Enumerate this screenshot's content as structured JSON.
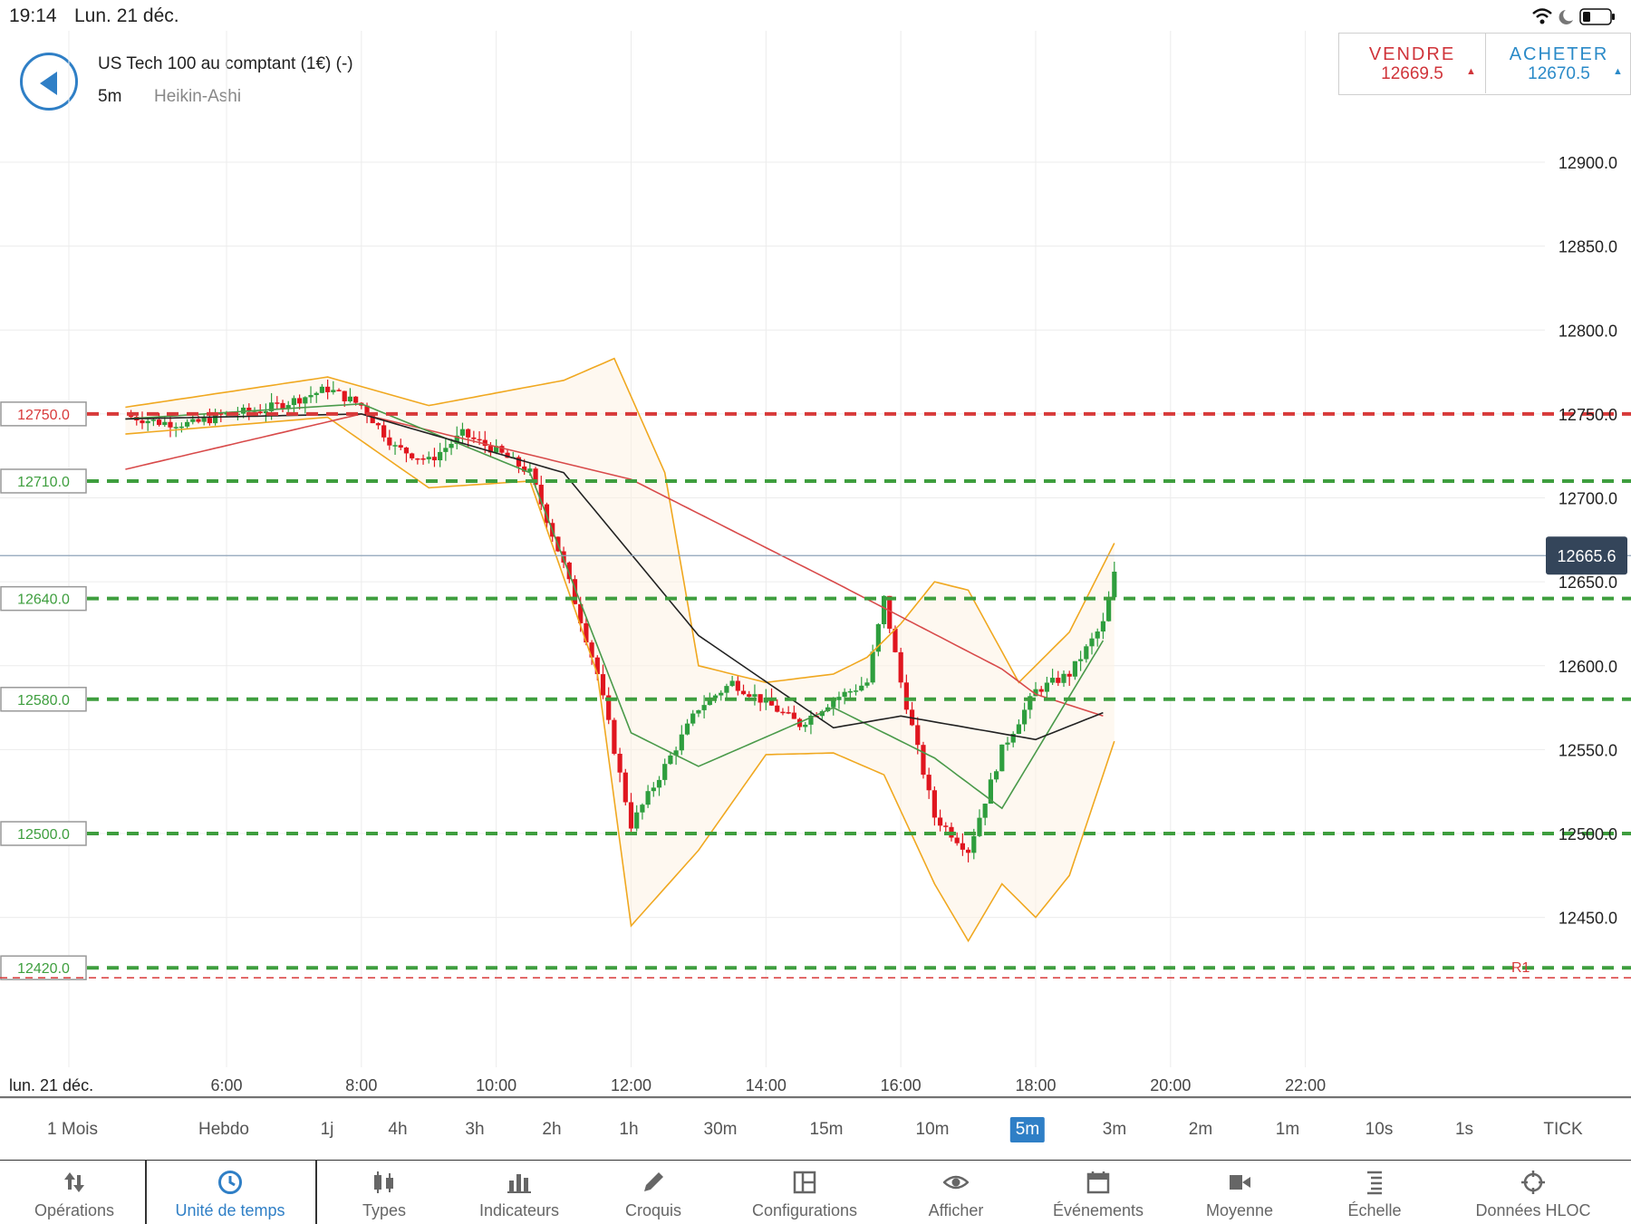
{
  "status": {
    "time": "19:14",
    "date": "Lun. 21 déc."
  },
  "instrument": {
    "name": "US Tech 100 au comptant (1€) (-)",
    "timeframe": "5m",
    "candle_type": "Heikin-Ashi"
  },
  "trade": {
    "sell_label": "VENDRE",
    "sell_price": "12669.5",
    "buy_label": "ACHETER",
    "buy_price": "12670.5",
    "sell_color": "#d0343a",
    "buy_color": "#2a8ac8"
  },
  "chart": {
    "y_axis_labels": [
      "12900.0",
      "12850.0",
      "12800.0",
      "12750.0",
      "12700.0",
      "12650.0",
      "12600.0",
      "12550.0",
      "12500.0",
      "12450.0"
    ],
    "x_axis_labels": [
      "6:00",
      "8:00",
      "10:00",
      "12:00",
      "14:00",
      "16:00",
      "18:00",
      "20:00",
      "22:00"
    ],
    "date_label": "lun. 21 déc.",
    "current_price": "12665.6",
    "r1_label": "R1",
    "levels": [
      {
        "label": "12750.0",
        "color": "red"
      },
      {
        "label": "12710.0",
        "color": "green"
      },
      {
        "label": "12640.0",
        "color": "green"
      },
      {
        "label": "12580.0",
        "color": "green"
      },
      {
        "label": "12500.0",
        "color": "green"
      },
      {
        "label": "12420.0",
        "color": "green"
      }
    ]
  },
  "chart_data": {
    "type": "candlestick",
    "candle_type": "Heikin-Ashi",
    "timeframe": "5m",
    "y_range": [
      12420,
      12920
    ],
    "x_range": [
      "4:30",
      "22:30"
    ],
    "current_price": 12665.6,
    "horizontal_levels": [
      12750,
      12710,
      12640,
      12580,
      12500,
      12420
    ],
    "close_path": [
      [
        "4:30",
        12749
      ],
      [
        "5:00",
        12745
      ],
      [
        "5:30",
        12744
      ],
      [
        "6:00",
        12750
      ],
      [
        "6:30",
        12752
      ],
      [
        "7:00",
        12758
      ],
      [
        "7:30",
        12765
      ],
      [
        "8:00",
        12755
      ],
      [
        "8:30",
        12730
      ],
      [
        "9:00",
        12722
      ],
      [
        "9:30",
        12738
      ],
      [
        "10:00",
        12728
      ],
      [
        "10:30",
        12715
      ],
      [
        "11:00",
        12660
      ],
      [
        "11:30",
        12595
      ],
      [
        "12:00",
        12505
      ],
      [
        "12:30",
        12540
      ],
      [
        "13:00",
        12575
      ],
      [
        "13:30",
        12590
      ],
      [
        "14:00",
        12578
      ],
      [
        "14:30",
        12565
      ],
      [
        "15:00",
        12580
      ],
      [
        "15:30",
        12590
      ],
      [
        "15:45",
        12640
      ],
      [
        "16:00",
        12590
      ],
      [
        "16:30",
        12510
      ],
      [
        "17:00",
        12490
      ],
      [
        "17:30",
        12550
      ],
      [
        "18:00",
        12585
      ],
      [
        "18:30",
        12595
      ],
      [
        "19:00",
        12625
      ],
      [
        "19:14",
        12666
      ]
    ],
    "lines": {
      "ema_red": [
        [
          "4:30",
          12717
        ],
        [
          "8:00",
          12750
        ],
        [
          "12:00",
          12711
        ],
        [
          "15:00",
          12650
        ],
        [
          "17:30",
          12598
        ],
        [
          "18:00",
          12583
        ],
        [
          "19:00",
          12570
        ]
      ],
      "ma_black": [
        [
          "4:30",
          12747
        ],
        [
          "8:00",
          12750
        ],
        [
          "11:00",
          12715
        ],
        [
          "13:00",
          12618
        ],
        [
          "15:00",
          12563
        ],
        [
          "16:00",
          12570
        ],
        [
          "18:00",
          12556
        ],
        [
          "19:00",
          12572
        ]
      ],
      "ma_green": [
        [
          "4:30",
          12747
        ],
        [
          "8:00",
          12756
        ],
        [
          "10:30",
          12715
        ],
        [
          "12:00",
          12560
        ],
        [
          "13:00",
          12540
        ],
        [
          "15:00",
          12575
        ],
        [
          "16:30",
          12545
        ],
        [
          "17:30",
          12515
        ],
        [
          "19:00",
          12615
        ]
      ]
    },
    "bollinger": {
      "upper": [
        [
          "4:30",
          12754
        ],
        [
          "7:30",
          12772
        ],
        [
          "9:00",
          12755
        ],
        [
          "11:00",
          12770
        ],
        [
          "11:45",
          12783
        ],
        [
          "12:30",
          12715
        ],
        [
          "13:00",
          12600
        ],
        [
          "14:00",
          12590
        ],
        [
          "15:00",
          12595
        ],
        [
          "15:30",
          12605
        ],
        [
          "16:00",
          12625
        ],
        [
          "16:30",
          12650
        ],
        [
          "17:00",
          12645
        ],
        [
          "17:45",
          12590
        ],
        [
          "18:30",
          12620
        ],
        [
          "19:10",
          12673
        ]
      ],
      "lower": [
        [
          "4:30",
          12738
        ],
        [
          "7:30",
          12748
        ],
        [
          "9:00",
          12706
        ],
        [
          "10:30",
          12710
        ],
        [
          "11:30",
          12595
        ],
        [
          "12:00",
          12445
        ],
        [
          "13:00",
          12490
        ],
        [
          "14:00",
          12547
        ],
        [
          "15:00",
          12548
        ],
        [
          "15:45",
          12535
        ],
        [
          "16:30",
          12470
        ],
        [
          "17:00",
          12436
        ],
        [
          "17:30",
          12470
        ],
        [
          "18:00",
          12450
        ],
        [
          "18:30",
          12475
        ],
        [
          "19:10",
          12555
        ]
      ]
    }
  },
  "timeframes": {
    "items": [
      "1 Mois",
      "Hebdo",
      "1j",
      "4h",
      "3h",
      "2h",
      "1h",
      "30m",
      "15m",
      "10m",
      "5m",
      "3m",
      "2m",
      "1m",
      "10s",
      "1s",
      "TICK"
    ],
    "active": "5m"
  },
  "toolbar": {
    "items": [
      {
        "label": "Opérations",
        "icon": "arrows-updown-icon"
      },
      {
        "label": "Unité de temps",
        "icon": "clock-icon"
      },
      {
        "label": "Types",
        "icon": "candles-icon"
      },
      {
        "label": "Indicateurs",
        "icon": "bar-chart-icon"
      },
      {
        "label": "Croquis",
        "icon": "pencil-icon"
      },
      {
        "label": "Configurations",
        "icon": "layout-icon"
      },
      {
        "label": "Afficher",
        "icon": "eye-icon"
      },
      {
        "label": "Événements",
        "icon": "calendar-icon"
      },
      {
        "label": "Moyenne",
        "icon": "camera-icon"
      },
      {
        "label": "Échelle",
        "icon": "scale-icon"
      },
      {
        "label": "Données HLOC",
        "icon": "crosshair-icon"
      }
    ],
    "active": "Unité de temps"
  }
}
